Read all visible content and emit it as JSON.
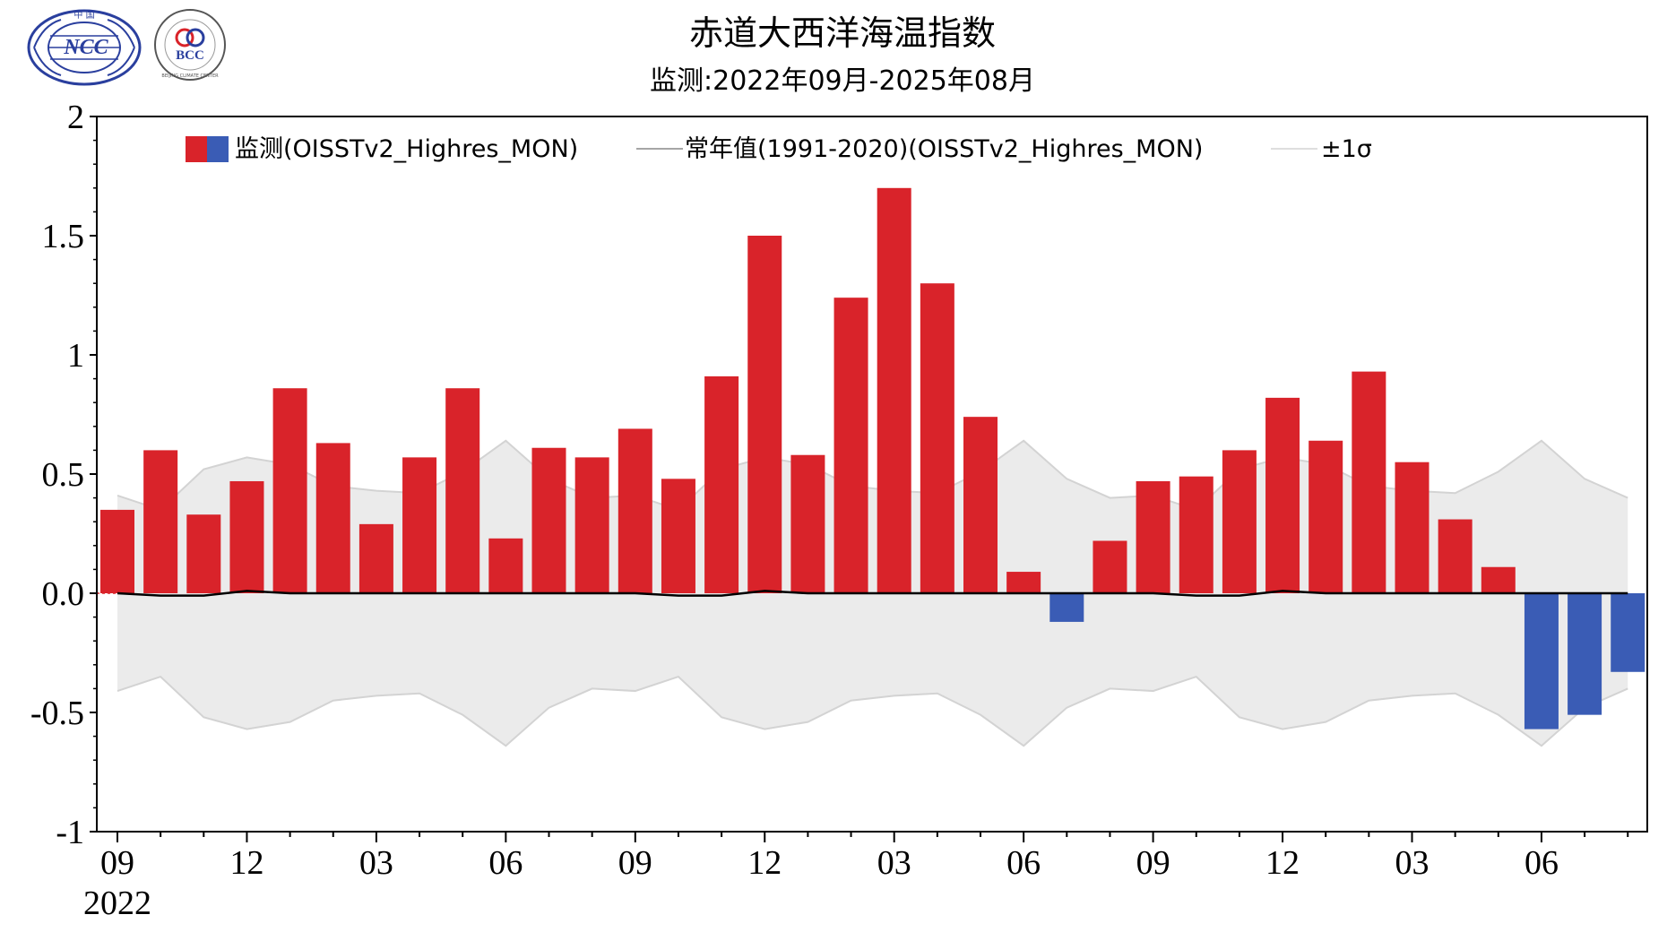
{
  "header": {
    "title": "赤道大西洋海温指数",
    "subtitle": "监测:2022年09月-2025年08月"
  },
  "logos": {
    "ncc_text": "NCC",
    "ncc_top": "中 国",
    "bcc_text": "BCC",
    "bcc_ring": "BEIJING CLIMATE CENTER"
  },
  "legend": {
    "monitor": "监测(OISSTv2_Highres_MON)",
    "normal": "常年值(1991-2020)(OISSTv2_Highres_MON)",
    "sigma": "±1σ"
  },
  "colors": {
    "positive": "#d9232a",
    "negative": "#3a5cb5",
    "band": "#ebebeb",
    "band_edge": "#d3d3d3",
    "normal_line": "#000000"
  },
  "chart_data": {
    "type": "bar",
    "title": "赤道大西洋海温指数",
    "subtitle": "监测:2022年09月-2025年08月",
    "xlabel": "",
    "ylabel": "",
    "ylim": [
      -1,
      2
    ],
    "yticks": [
      -1,
      -0.5,
      0,
      0.5,
      1,
      1.5,
      2
    ],
    "ytick_labels": [
      "-1",
      "-0.5",
      "0.0",
      "0.5",
      "1",
      "1.5",
      "2"
    ],
    "xtick_labels": [
      "09",
      "12",
      "03",
      "06",
      "09",
      "12",
      "03",
      "06",
      "09",
      "12",
      "03",
      "06"
    ],
    "xtick_indices": [
      0,
      3,
      6,
      9,
      12,
      15,
      18,
      21,
      24,
      27,
      30,
      33
    ],
    "year_label": "2022",
    "categories": [
      "2022-09",
      "2022-10",
      "2022-11",
      "2022-12",
      "2023-01",
      "2023-02",
      "2023-03",
      "2023-04",
      "2023-05",
      "2023-06",
      "2023-07",
      "2023-08",
      "2023-09",
      "2023-10",
      "2023-11",
      "2023-12",
      "2024-01",
      "2024-02",
      "2024-03",
      "2024-04",
      "2024-05",
      "2024-06",
      "2024-07",
      "2024-08",
      "2024-09",
      "2024-10",
      "2024-11",
      "2024-12",
      "2025-01",
      "2025-02",
      "2025-03",
      "2025-04",
      "2025-05",
      "2025-06",
      "2025-07",
      "2025-08"
    ],
    "series": [
      {
        "name": "监测(OISSTv2_Highres_MON)",
        "type": "bar",
        "values": [
          0.35,
          0.6,
          0.33,
          0.47,
          0.86,
          0.63,
          0.29,
          0.57,
          0.86,
          0.23,
          0.61,
          0.57,
          0.69,
          0.48,
          0.91,
          1.5,
          0.58,
          1.24,
          1.7,
          1.3,
          0.74,
          0.09,
          -0.12,
          0.22,
          0.47,
          0.49,
          0.6,
          0.82,
          0.64,
          0.93,
          0.55,
          0.31,
          0.11,
          -0.57,
          -0.51,
          -0.33
        ]
      },
      {
        "name": "常年值(1991-2020)(OISSTv2_Highres_MON)",
        "type": "line",
        "values": [
          0.0,
          -0.01,
          -0.01,
          0.01,
          0.0,
          0.0,
          0.0,
          0.0,
          0.0,
          0.0,
          0.0,
          0.0,
          0.0,
          -0.01,
          -0.01,
          0.01,
          0.0,
          0.0,
          0.0,
          0.0,
          0.0,
          0.0,
          0.0,
          0.0,
          0.0,
          -0.01,
          -0.01,
          0.01,
          0.0,
          0.0,
          0.0,
          0.0,
          0.0,
          0.0,
          0.0,
          0.0
        ]
      },
      {
        "name": "±1σ",
        "type": "band",
        "values": [
          0.41,
          0.35,
          0.52,
          0.57,
          0.54,
          0.45,
          0.43,
          0.42,
          0.51,
          0.64,
          0.48,
          0.4,
          0.41,
          0.35,
          0.52,
          0.57,
          0.54,
          0.45,
          0.43,
          0.42,
          0.51,
          0.64,
          0.48,
          0.4,
          0.41,
          0.35,
          0.52,
          0.57,
          0.54,
          0.45,
          0.43,
          0.42,
          0.51,
          0.64,
          0.48,
          0.4
        ]
      }
    ],
    "legend_position": "top"
  }
}
